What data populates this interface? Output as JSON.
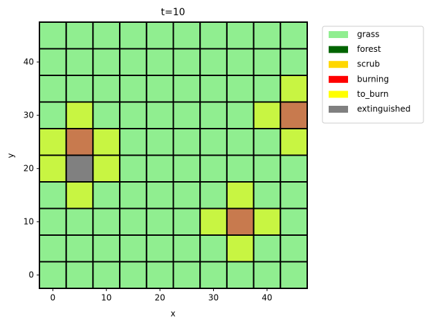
{
  "chart_data": {
    "type": "grid",
    "title": "t=10",
    "x_label": "x",
    "y_label": "y",
    "x": [
      0,
      5,
      10,
      15,
      20,
      25,
      30,
      35,
      40,
      45
    ],
    "y": [
      0,
      5,
      10,
      15,
      20,
      25,
      30,
      35,
      40,
      45
    ],
    "xlim": [
      -2.5,
      47.5
    ],
    "ylim": [
      -2.5,
      47.5
    ],
    "xticks": [
      0,
      10,
      20,
      30,
      40
    ],
    "yticks": [
      0,
      10,
      20,
      30,
      40
    ],
    "states": [
      {
        "name": "grass",
        "color": "#90ee90"
      },
      {
        "name": "forest",
        "color": "#006400"
      },
      {
        "name": "scrub",
        "color": "#ffd700"
      },
      {
        "name": "burning",
        "color": "#ff0000"
      },
      {
        "name": "to_burn",
        "color": "#ffff00"
      },
      {
        "name": "extinguished",
        "color": "#808080"
      }
    ],
    "cell_colors": {
      "grass": "#90ee90",
      "forest": "#006400",
      "scrub": "#ffd700",
      "burning": "#c87a4e",
      "to_burn": "#c8f542",
      "extinguished": "#808080"
    },
    "legend": "outside upper right",
    "grid": [
      [
        "grass",
        "grass",
        "grass",
        "grass",
        "grass",
        "grass",
        "grass",
        "grass",
        "grass",
        "grass"
      ],
      [
        "grass",
        "grass",
        "grass",
        "grass",
        "grass",
        "grass",
        "grass",
        "to_burn",
        "grass",
        "grass"
      ],
      [
        "grass",
        "grass",
        "grass",
        "grass",
        "grass",
        "grass",
        "to_burn",
        "burning",
        "to_burn",
        "grass"
      ],
      [
        "grass",
        "to_burn",
        "grass",
        "grass",
        "grass",
        "grass",
        "grass",
        "to_burn",
        "grass",
        "grass"
      ],
      [
        "to_burn",
        "extinguished",
        "to_burn",
        "grass",
        "grass",
        "grass",
        "grass",
        "grass",
        "grass",
        "grass"
      ],
      [
        "to_burn",
        "burning",
        "to_burn",
        "grass",
        "grass",
        "grass",
        "grass",
        "grass",
        "grass",
        "to_burn"
      ],
      [
        "grass",
        "to_burn",
        "grass",
        "grass",
        "grass",
        "grass",
        "grass",
        "grass",
        "to_burn",
        "burning"
      ],
      [
        "grass",
        "grass",
        "grass",
        "grass",
        "grass",
        "grass",
        "grass",
        "grass",
        "grass",
        "to_burn"
      ],
      [
        "grass",
        "grass",
        "grass",
        "grass",
        "grass",
        "grass",
        "grass",
        "grass",
        "grass",
        "grass"
      ],
      [
        "grass",
        "grass",
        "grass",
        "grass",
        "grass",
        "grass",
        "grass",
        "grass",
        "grass",
        "grass"
      ]
    ]
  }
}
